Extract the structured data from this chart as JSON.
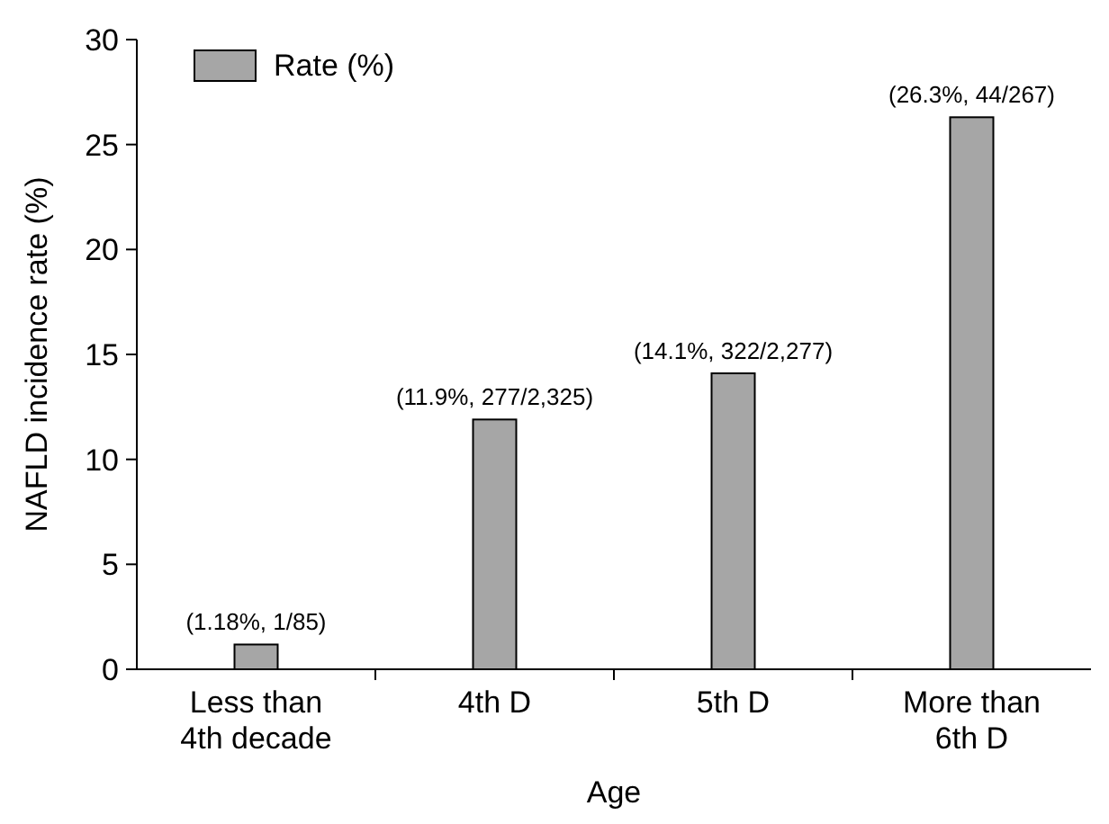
{
  "chart_data": {
    "type": "bar",
    "xlabel": "Age",
    "ylabel": "NAFLD incidence rate (%)",
    "categories": [
      "Less than\n4th decade",
      "4th D",
      "5th D",
      "More than\n6th D"
    ],
    "series": [
      {
        "name": "Rate (%)",
        "color": "#a6a6a6",
        "values": [
          1.18,
          11.9,
          14.1,
          26.3
        ],
        "value_labels": [
          "(1.18%, 1/85)",
          "(11.9%, 277/2,325)",
          "(14.1%, 322/2,277)",
          "(26.3%, 44/267)"
        ]
      }
    ],
    "ylim": [
      0,
      30
    ],
    "yticks": [
      0,
      5,
      10,
      15,
      20,
      25,
      30
    ],
    "grid": false,
    "legend": "top left"
  }
}
